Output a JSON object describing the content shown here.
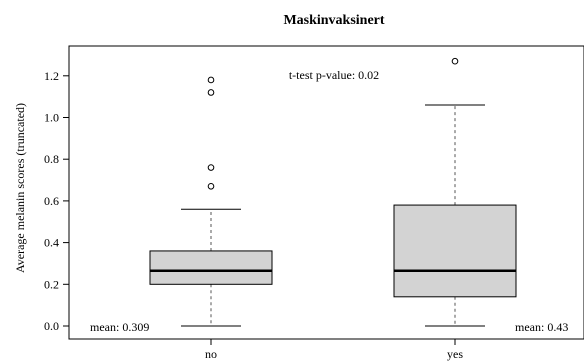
{
  "chart_data": {
    "type": "boxplot",
    "title": "Maskinvaksinert",
    "xlabel": "",
    "ylabel": "Average melanin scores (truncated)",
    "categories": [
      "no",
      "yes"
    ],
    "ylim": [
      -0.02,
      1.36
    ],
    "yticks": [
      0.0,
      0.2,
      0.4,
      0.6,
      0.8,
      1.0,
      1.2
    ],
    "ytick_labels": [
      "0.0",
      "0.2",
      "0.4",
      "0.6",
      "0.8",
      "1.0",
      "1.2"
    ],
    "grid": false,
    "boxes": [
      {
        "category": "no",
        "whisker_low": 0.0,
        "q1": 0.2,
        "median": 0.265,
        "q3": 0.36,
        "whisker_high": 0.56,
        "outliers": [
          0.67,
          0.76,
          1.12,
          1.18
        ]
      },
      {
        "category": "yes",
        "whisker_low": 0.0,
        "q1": 0.14,
        "median": 0.265,
        "q3": 0.58,
        "whisker_high": 1.06,
        "outliers": [
          1.27
        ]
      }
    ],
    "annotations": {
      "ttest": "t-test p-value: 0.02",
      "mean_no": "mean: 0.309",
      "mean_yes": "mean: 0.43"
    },
    "colors": {
      "box_fill": "#d3d3d3",
      "stroke": "#000000",
      "whisker": "#555555"
    }
  }
}
